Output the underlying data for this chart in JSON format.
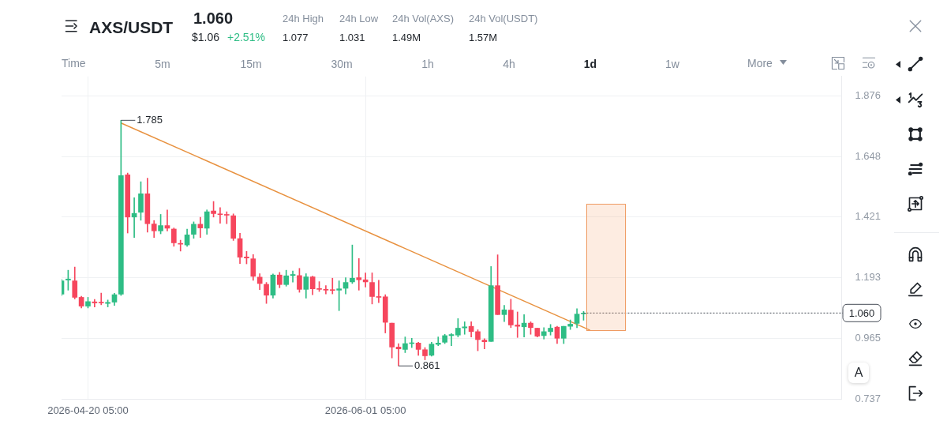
{
  "chart_data": {
    "type": "candlestick",
    "title": "AXS/USDT",
    "x": [
      "2026-04-16T05:00",
      "2026-04-17T05:00",
      "2026-04-18T05:00",
      "2026-04-19T05:00",
      "2026-04-20T05:00",
      "2026-04-21T05:00",
      "2026-04-22T05:00",
      "2026-04-23T05:00",
      "2026-04-24T05:00",
      "2026-04-25T05:00",
      "2026-04-26T05:00",
      "2026-04-27T05:00",
      "2026-04-28T05:00",
      "2026-04-29T05:00",
      "2026-04-30T05:00",
      "2026-05-01T05:00",
      "2026-05-02T05:00",
      "2026-05-03T05:00",
      "2026-05-04T05:00",
      "2026-05-05T05:00",
      "2026-05-06T05:00",
      "2026-05-07T05:00",
      "2026-05-08T05:00",
      "2026-05-09T05:00",
      "2026-05-10T05:00",
      "2026-05-11T05:00",
      "2026-05-12T05:00",
      "2026-05-13T05:00",
      "2026-05-14T05:00",
      "2026-05-15T05:00",
      "2026-05-16T05:00",
      "2026-05-17T05:00",
      "2026-05-18T05:00",
      "2026-05-19T05:00",
      "2026-05-20T05:00",
      "2026-05-21T05:00",
      "2026-05-22T05:00",
      "2026-05-23T05:00",
      "2026-05-24T05:00",
      "2026-05-25T05:00",
      "2026-05-26T05:00",
      "2026-05-27T05:00",
      "2026-05-28T05:00",
      "2026-05-29T05:00",
      "2026-05-30T05:00",
      "2026-05-31T05:00",
      "2026-06-01T05:00",
      "2026-06-02T05:00",
      "2026-06-03T05:00",
      "2026-06-04T05:00",
      "2026-06-05T05:00",
      "2026-06-06T05:00",
      "2026-06-07T05:00",
      "2026-06-08T05:00",
      "2026-06-09T05:00",
      "2026-06-10T05:00",
      "2026-06-11T05:00",
      "2026-06-12T05:00",
      "2026-06-13T05:00",
      "2026-06-14T05:00",
      "2026-06-15T05:00",
      "2026-06-16T05:00",
      "2026-06-17T05:00",
      "2026-06-18T05:00",
      "2026-06-19T05:00",
      "2026-06-20T05:00",
      "2026-06-21T05:00",
      "2026-06-22T05:00",
      "2026-06-23T05:00",
      "2026-06-24T05:00",
      "2026-06-25T05:00",
      "2026-06-26T05:00",
      "2026-06-27T05:00",
      "2026-06-28T05:00",
      "2026-06-29T05:00",
      "2026-06-30T05:00",
      "2026-07-01T05:00",
      "2026-07-02T05:00",
      "2026-07-03T05:00",
      "2026-07-04T05:00"
    ],
    "ohlc": [
      [
        1.131,
        1.186,
        1.126,
        1.181
      ],
      [
        1.184,
        1.221,
        1.146,
        1.188
      ],
      [
        1.181,
        1.233,
        1.113,
        1.119
      ],
      [
        1.119,
        1.123,
        1.079,
        1.086
      ],
      [
        1.086,
        1.119,
        1.079,
        1.103
      ],
      [
        1.102,
        1.111,
        1.083,
        1.098
      ],
      [
        1.101,
        1.135,
        1.091,
        1.098
      ],
      [
        1.096,
        1.109,
        1.083,
        1.1
      ],
      [
        1.101,
        1.134,
        1.089,
        1.129
      ],
      [
        1.131,
        1.785,
        1.126,
        1.577
      ],
      [
        1.58,
        1.587,
        1.361,
        1.421
      ],
      [
        1.421,
        1.494,
        1.344,
        1.435
      ],
      [
        1.439,
        1.554,
        1.409,
        1.509
      ],
      [
        1.509,
        1.567,
        1.364,
        1.396
      ],
      [
        1.395,
        1.408,
        1.344,
        1.369
      ],
      [
        1.369,
        1.431,
        1.358,
        1.389
      ],
      [
        1.389,
        1.448,
        1.369,
        1.379
      ],
      [
        1.376,
        1.38,
        1.311,
        1.324
      ],
      [
        1.322,
        1.334,
        1.293,
        1.319
      ],
      [
        1.316,
        1.376,
        1.311,
        1.354
      ],
      [
        1.356,
        1.403,
        1.341,
        1.394
      ],
      [
        1.394,
        1.42,
        1.344,
        1.38
      ],
      [
        1.379,
        1.448,
        1.356,
        1.441
      ],
      [
        1.444,
        1.48,
        1.421,
        1.434
      ],
      [
        1.433,
        1.457,
        1.398,
        1.43
      ],
      [
        1.43,
        1.441,
        1.396,
        1.428
      ],
      [
        1.426,
        1.433,
        1.333,
        1.341
      ],
      [
        1.34,
        1.36,
        1.246,
        1.27
      ],
      [
        1.271,
        1.292,
        1.245,
        1.267
      ],
      [
        1.264,
        1.28,
        1.183,
        1.198
      ],
      [
        1.195,
        1.208,
        1.148,
        1.171
      ],
      [
        1.168,
        1.175,
        1.096,
        1.127
      ],
      [
        1.127,
        1.207,
        1.116,
        1.203
      ],
      [
        1.203,
        1.213,
        1.155,
        1.167
      ],
      [
        1.167,
        1.221,
        1.161,
        1.2
      ],
      [
        1.201,
        1.218,
        1.176,
        1.205
      ],
      [
        1.201,
        1.228,
        1.138,
        1.149
      ],
      [
        1.149,
        1.208,
        1.116,
        1.196
      ],
      [
        1.196,
        1.199,
        1.129,
        1.151
      ],
      [
        1.152,
        1.178,
        1.141,
        1.149
      ],
      [
        1.149,
        1.163,
        1.132,
        1.146
      ],
      [
        1.147,
        1.191,
        1.132,
        1.145
      ],
      [
        1.146,
        1.181,
        1.069,
        1.151
      ],
      [
        1.153,
        1.193,
        1.132,
        1.175
      ],
      [
        1.177,
        1.316,
        1.171,
        1.191
      ],
      [
        1.193,
        1.265,
        1.146,
        1.185
      ],
      [
        1.185,
        1.211,
        1.158,
        1.177
      ],
      [
        1.175,
        1.211,
        1.094,
        1.122
      ],
      [
        1.122,
        1.183,
        1.099,
        1.119
      ],
      [
        1.121,
        1.129,
        0.985,
        1.025
      ],
      [
        1.022,
        1.022,
        0.891,
        0.932
      ],
      [
        0.932,
        0.945,
        0.861,
        0.925
      ],
      [
        0.923,
        0.97,
        0.911,
        0.945
      ],
      [
        0.945,
        0.965,
        0.93,
        0.948
      ],
      [
        0.947,
        0.95,
        0.901,
        0.923
      ],
      [
        0.922,
        0.93,
        0.884,
        0.899
      ],
      [
        0.901,
        0.95,
        0.898,
        0.943
      ],
      [
        0.942,
        0.97,
        0.937,
        0.947
      ],
      [
        0.95,
        0.98,
        0.945,
        0.975
      ],
      [
        0.975,
        0.983,
        0.937,
        0.979
      ],
      [
        0.977,
        1.039,
        0.97,
        1.003
      ],
      [
        1.004,
        1.027,
        0.98,
        1.008
      ],
      [
        1.01,
        1.027,
        0.97,
        0.99
      ],
      [
        0.99,
        0.997,
        0.918,
        0.96
      ],
      [
        0.958,
        0.963,
        0.925,
        0.952
      ],
      [
        0.953,
        1.235,
        0.953,
        1.163
      ],
      [
        1.163,
        1.279,
        1.054,
        1.054
      ],
      [
        1.054,
        1.089,
        1.028,
        1.072
      ],
      [
        1.071,
        1.112,
        1.005,
        1.015
      ],
      [
        1.015,
        1.064,
        0.968,
        1.01
      ],
      [
        1.008,
        1.054,
        0.97,
        1.022
      ],
      [
        1.022,
        1.027,
        0.98,
        1.005
      ],
      [
        1.003,
        1.003,
        0.97,
        0.973
      ],
      [
        0.975,
        1.005,
        0.962,
        0.99
      ],
      [
        0.99,
        1.017,
        0.977,
        1.003
      ],
      [
        1.007,
        1.01,
        0.945,
        0.965
      ],
      [
        0.965,
        1.01,
        0.945,
        1.01
      ],
      [
        1.01,
        1.034,
        0.998,
        1.018
      ],
      [
        1.021,
        1.076,
        1.005,
        1.056
      ],
      [
        1.057,
        1.066,
        1.033,
        1.06
      ]
    ],
    "colors": [
      "#2ebd85",
      "#2ebd85",
      "#f6465d",
      "#f6465d",
      "#2ebd85",
      "#f6465d",
      "#f6465d",
      "#2ebd85",
      "#2ebd85",
      "#2ebd85",
      "#f6465d",
      "#2ebd85",
      "#2ebd85",
      "#f6465d",
      "#f6465d",
      "#2ebd85",
      "#f6465d",
      "#f6465d",
      "#f6465d",
      "#2ebd85",
      "#2ebd85",
      "#f6465d",
      "#2ebd85",
      "#f6465d",
      "#f6465d",
      "#f6465d",
      "#f6465d",
      "#f6465d",
      "#f6465d",
      "#f6465d",
      "#f6465d",
      "#f6465d",
      "#2ebd85",
      "#f6465d",
      "#2ebd85",
      "#2ebd85",
      "#f6465d",
      "#2ebd85",
      "#f6465d",
      "#f6465d",
      "#f6465d",
      "#f6465d",
      "#2ebd85",
      "#2ebd85",
      "#2ebd85",
      "#f6465d",
      "#f6465d",
      "#f6465d",
      "#f6465d",
      "#f6465d",
      "#f6465d",
      "#f6465d",
      "#2ebd85",
      "#2ebd85",
      "#f6465d",
      "#f6465d",
      "#2ebd85",
      "#2ebd85",
      "#2ebd85",
      "#2ebd85",
      "#2ebd85",
      "#2ebd85",
      "#f6465d",
      "#f6465d",
      "#f6465d",
      "#2ebd85",
      "#f6465d",
      "#2ebd85",
      "#f6465d",
      "#f6465d",
      "#2ebd85",
      "#f6465d",
      "#f6465d",
      "#2ebd85",
      "#2ebd85",
      "#f6465d",
      "#2ebd85",
      "#2ebd85",
      "#2ebd85",
      "#2ebd85"
    ],
    "series": [
      {
        "type": "line",
        "x": [
          "2026-04-25T05:00",
          "2026-07-05T05:00"
        ],
        "values": [
          1.775,
          0.995
        ],
        "color": "#e8913f"
      }
    ],
    "xlim": [
      "2026-04-16T05:00",
      "2026-08-12T05:00"
    ],
    "xticks": [
      {
        "value": "2026-04-20T05:00",
        "label": "2026-04-20 05:00"
      },
      {
        "value": "2026-06-01T05:00",
        "label": "2026-06-01 05:00"
      }
    ],
    "ylim": [
      0.737,
      1.95
    ],
    "yticks": [
      0.737,
      0.965,
      1.193,
      1.421,
      1.648,
      1.876
    ],
    "grid": true,
    "ref_lines": [
      {
        "axis": "y",
        "value": 1.06,
        "label": "1.060",
        "line_style": "dotted",
        "color": "#474d57"
      }
    ],
    "annotations": [
      "1.060",
      "$1.06",
      "+2.51%",
      "24h High",
      "1.077",
      "24h Low",
      "1.031",
      "24h Vol(AXS)",
      "1.49M",
      "24h Vol(USDT)",
      "1.57M",
      "Time",
      "5m",
      "15m",
      "30m",
      "1h",
      "4h",
      "1d",
      "1w",
      "More",
      "A",
      {
        "text": "1.785",
        "x": "2026-04-25T05:00",
        "y": 1.785
      },
      {
        "text": "0.861",
        "x": "2026-06-06T05:00",
        "y": 0.861
      }
    ]
  }
}
